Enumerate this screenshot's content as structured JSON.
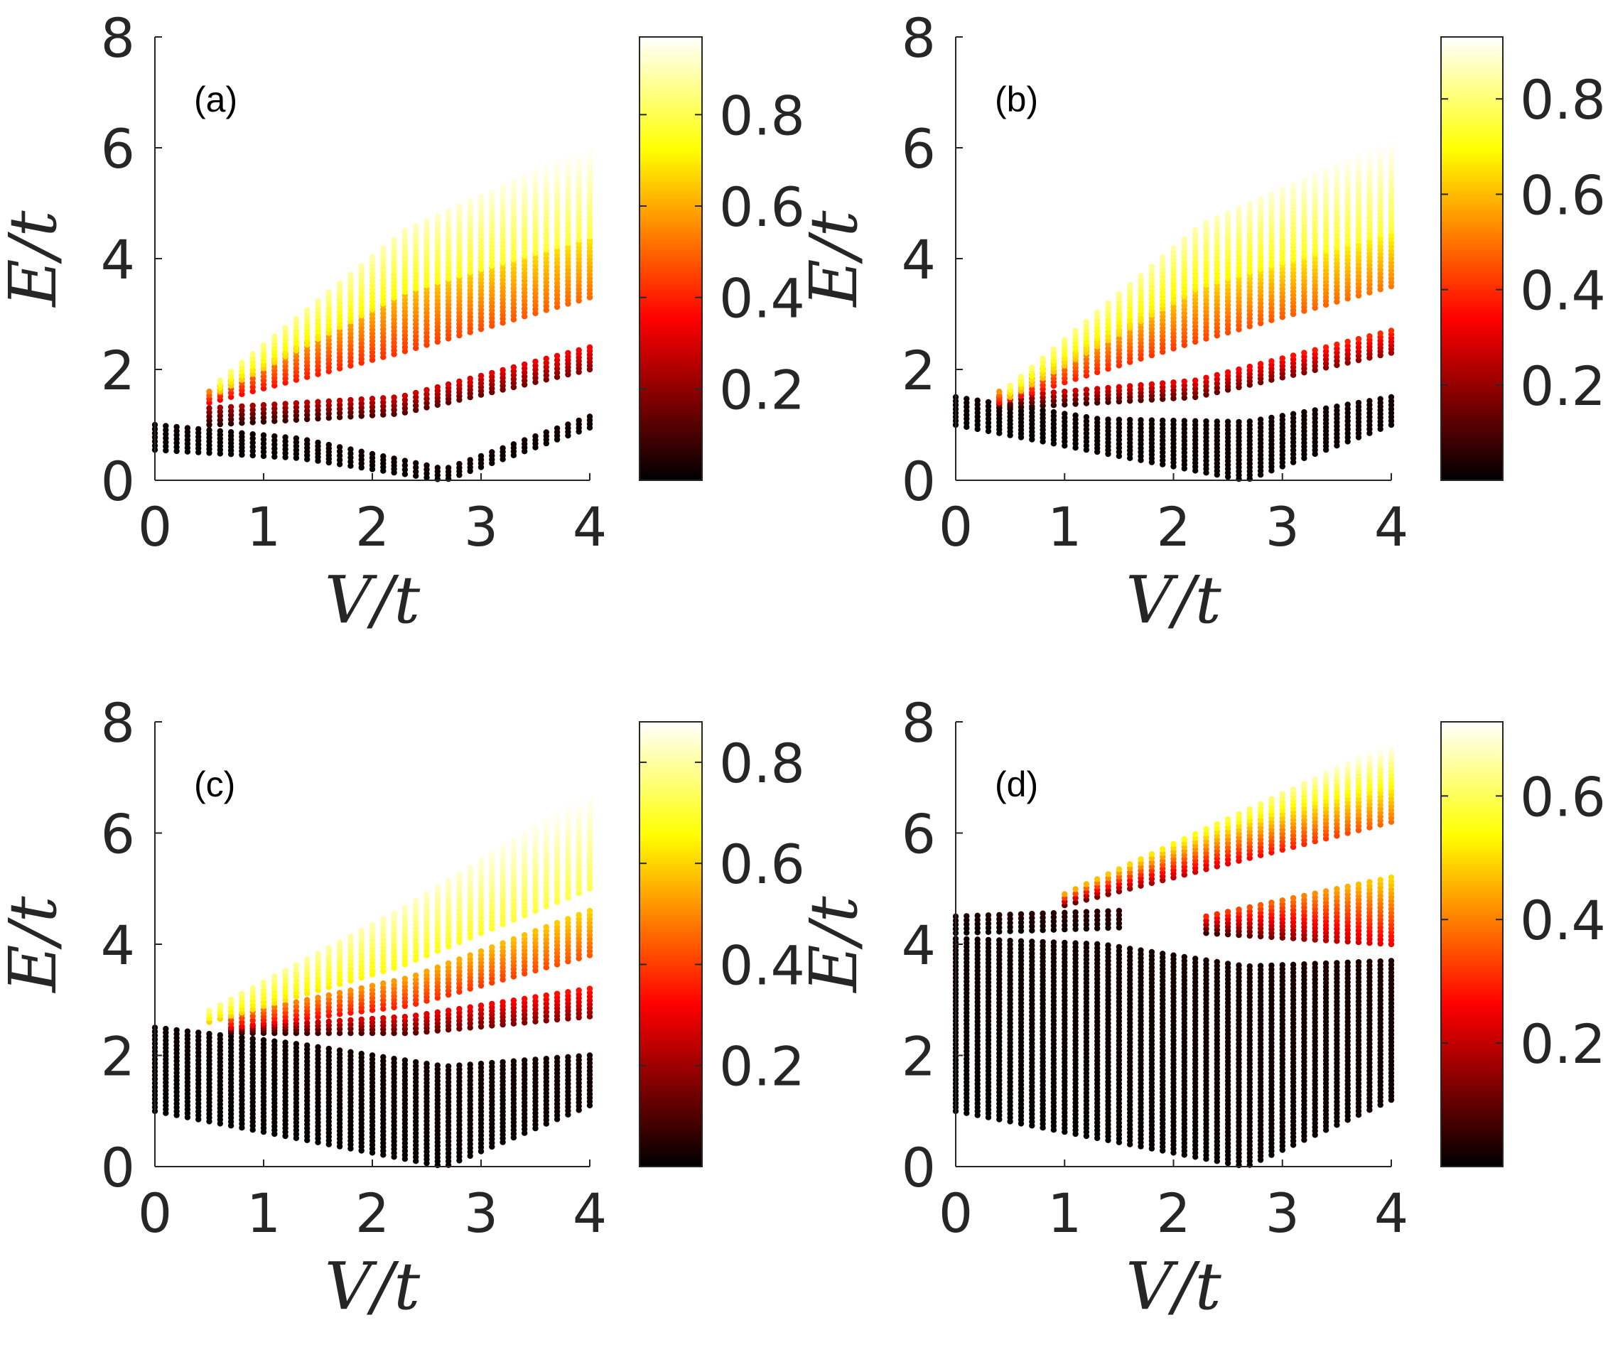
{
  "colormap": {
    "name": "hot",
    "stops": [
      "#000000",
      "#ff0000",
      "#ffff00",
      "#ffffff"
    ]
  },
  "chart_data": [
    {
      "type": "scatter",
      "panel_label": "(a)",
      "xlabel": "V/t",
      "ylabel": "E/t",
      "xlim": [
        0,
        4
      ],
      "ylim": [
        0,
        8
      ],
      "xticks": [
        0,
        1,
        2,
        3,
        4
      ],
      "yticks": [
        0,
        2,
        4,
        6,
        8
      ],
      "grid": false,
      "colorbar": {
        "range": [
          0,
          0.97
        ],
        "ticks": [
          0.2,
          0.4,
          0.6,
          0.8
        ]
      },
      "bands": [
        {
          "name": "lowest band",
          "x0": 0,
          "x1": 4,
          "lo": [
            0.55,
            0.4,
            0.0,
            0.95
          ],
          "hi": [
            1.0,
            0.75,
            0.2,
            1.15
          ],
          "color": [
            0.0,
            0.03
          ]
        },
        {
          "name": "second band",
          "x0": 0.5,
          "x1": 4,
          "lo": [
            1.0,
            1.2,
            2.0
          ],
          "hi": [
            1.3,
            1.5,
            2.4
          ],
          "color": [
            0.05,
            0.35
          ]
        },
        {
          "name": "third band",
          "x0": 0.5,
          "x1": 4,
          "lo": [
            1.4,
            2.3,
            3.3
          ],
          "hi": [
            1.6,
            3.3,
            4.4
          ],
          "color": [
            0.35,
            0.7
          ]
        },
        {
          "name": "top band",
          "x0": 0.6,
          "x1": 4,
          "lo": [
            1.6,
            3.4,
            4.4
          ],
          "hi": [
            1.8,
            4.5,
            6.0
          ],
          "color": [
            0.65,
            0.97
          ]
        }
      ]
    },
    {
      "type": "scatter",
      "panel_label": "(b)",
      "xlabel": "V/t",
      "ylabel": "E/t",
      "xlim": [
        0,
        4
      ],
      "ylim": [
        0,
        8
      ],
      "xticks": [
        0,
        1,
        2,
        3,
        4
      ],
      "yticks": [
        0,
        2,
        4,
        6,
        8
      ],
      "grid": false,
      "colorbar": {
        "range": [
          0,
          0.93
        ],
        "ticks": [
          0.2,
          0.4,
          0.6,
          0.8
        ]
      },
      "bands": [
        {
          "name": "lowest band",
          "x0": 0,
          "x1": 4,
          "lo": [
            1.0,
            0.5,
            0.0,
            1.0
          ],
          "hi": [
            1.5,
            1.1,
            1.05,
            1.5
          ],
          "color": [
            0.0,
            0.03
          ]
        },
        {
          "name": "second band",
          "x0": 0.4,
          "x1": 4,
          "lo": [
            1.3,
            1.5,
            2.3
          ],
          "hi": [
            1.5,
            1.8,
            2.7
          ],
          "color": [
            0.05,
            0.4
          ]
        },
        {
          "name": "third band",
          "x0": 0.4,
          "x1": 4,
          "lo": [
            1.4,
            2.5,
            3.5
          ],
          "hi": [
            1.6,
            3.4,
            4.5
          ],
          "color": [
            0.35,
            0.7
          ]
        },
        {
          "name": "top band",
          "x0": 0.5,
          "x1": 4,
          "lo": [
            1.5,
            3.5,
            4.5
          ],
          "hi": [
            1.7,
            4.6,
            6.1
          ],
          "color": [
            0.6,
            0.93
          ]
        }
      ]
    },
    {
      "type": "scatter",
      "panel_label": "(c)",
      "xlabel": "V/t",
      "ylabel": "E/t",
      "xlim": [
        0,
        4
      ],
      "ylim": [
        0,
        8
      ],
      "xticks": [
        0,
        1,
        2,
        3,
        4
      ],
      "yticks": [
        0,
        2,
        4,
        6,
        8
      ],
      "grid": false,
      "colorbar": {
        "range": [
          0,
          0.88
        ],
        "ticks": [
          0.2,
          0.4,
          0.6,
          0.8
        ]
      },
      "bands": [
        {
          "name": "lowest band",
          "x0": 0,
          "x1": 4,
          "lo": [
            1.0,
            0.5,
            0.0,
            1.1
          ],
          "hi": [
            2.5,
            2.2,
            1.8,
            2.0
          ],
          "color": [
            0.0,
            0.03
          ]
        },
        {
          "name": "second band",
          "x0": 0.7,
          "x1": 4,
          "lo": [
            2.4,
            2.4,
            2.7
          ],
          "hi": [
            2.5,
            2.7,
            3.2
          ],
          "color": [
            0.05,
            0.35
          ]
        },
        {
          "name": "third band",
          "x0": 0.7,
          "x1": 4,
          "lo": [
            2.5,
            2.9,
            3.8
          ],
          "hi": [
            2.7,
            3.4,
            4.6
          ],
          "color": [
            0.3,
            0.6
          ]
        },
        {
          "name": "top band",
          "x0": 0.5,
          "x1": 4,
          "lo": [
            2.6,
            3.6,
            5.0
          ],
          "hi": [
            2.8,
            4.6,
            6.7
          ],
          "color": [
            0.6,
            0.88
          ]
        }
      ]
    },
    {
      "type": "scatter",
      "panel_label": "(d)",
      "xlabel": "V/t",
      "ylabel": "E/t",
      "xlim": [
        0,
        4
      ],
      "ylim": [
        0,
        8
      ],
      "xticks": [
        0,
        1,
        2,
        3,
        4
      ],
      "yticks": [
        0,
        2,
        4,
        6,
        8
      ],
      "grid": false,
      "colorbar": {
        "range": [
          0,
          0.72
        ],
        "ticks": [
          0.2,
          0.4,
          0.6
        ]
      },
      "bands": [
        {
          "name": "lowest band",
          "x0": 0,
          "x1": 4,
          "lo": [
            1.0,
            0.5,
            0.0,
            1.2
          ],
          "hi": [
            4.1,
            4.0,
            3.6,
            3.7
          ],
          "color": [
            0.0,
            0.03
          ]
        },
        {
          "name": "upper-left band",
          "x0": 0,
          "x1": 1.5,
          "lo": [
            4.2,
            4.3
          ],
          "hi": [
            4.5,
            4.6
          ],
          "color": [
            0.0,
            0.05
          ]
        },
        {
          "name": "middle band",
          "x0": 2.3,
          "x1": 4,
          "lo": [
            4.2,
            4.0
          ],
          "hi": [
            4.5,
            5.2
          ],
          "color": [
            0.05,
            0.5
          ]
        },
        {
          "name": "top band",
          "x0": 1.0,
          "x1": 4,
          "lo": [
            4.7,
            6.2
          ],
          "hi": [
            4.9,
            7.6
          ],
          "color": [
            0.1,
            0.72
          ]
        }
      ]
    }
  ]
}
